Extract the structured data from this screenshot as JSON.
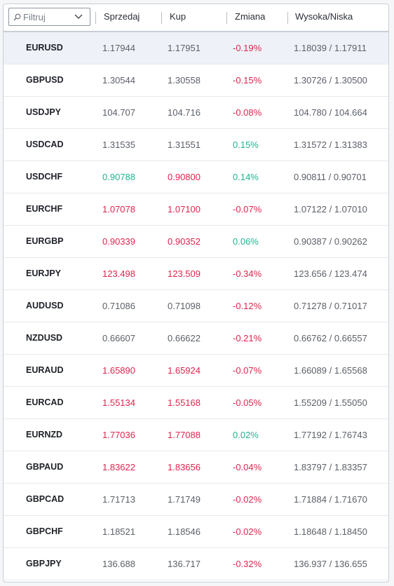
{
  "filter": {
    "placeholder": "Filtruj"
  },
  "columns": {
    "sell": "Sprzedaj",
    "buy": "Kup",
    "change": "Zmiana",
    "highlow": "Wysoka/Niska"
  },
  "colors": {
    "red": "#e0234e",
    "green": "#1fb491",
    "neutral": "#5b6068"
  },
  "rows": [
    {
      "symbol": "EURUSD",
      "sell": "1.17944",
      "buy": "1.17951",
      "change": "-0.19%",
      "highlow": "1.18039 / 1.17911",
      "price_tone": "neutral",
      "change_tone": "red",
      "selected": true
    },
    {
      "symbol": "GBPUSD",
      "sell": "1.30544",
      "buy": "1.30558",
      "change": "-0.15%",
      "highlow": "1.30726 / 1.30500",
      "price_tone": "neutral",
      "change_tone": "red"
    },
    {
      "symbol": "USDJPY",
      "sell": "104.707",
      "buy": "104.716",
      "change": "-0.08%",
      "highlow": "104.780 / 104.664",
      "price_tone": "neutral",
      "change_tone": "red"
    },
    {
      "symbol": "USDCAD",
      "sell": "1.31535",
      "buy": "1.31551",
      "change": "0.15%",
      "highlow": "1.31572 / 1.31383",
      "price_tone": "neutral",
      "change_tone": "green"
    },
    {
      "symbol": "USDCHF",
      "sell": "0.90788",
      "buy": "0.90800",
      "change": "0.14%",
      "highlow": "0.90811 / 0.90701",
      "sell_tone": "green",
      "buy_tone": "red",
      "change_tone": "green"
    },
    {
      "symbol": "EURCHF",
      "sell": "1.07078",
      "buy": "1.07100",
      "change": "-0.07%",
      "highlow": "1.07122 / 1.07010",
      "price_tone": "red",
      "change_tone": "red"
    },
    {
      "symbol": "EURGBP",
      "sell": "0.90339",
      "buy": "0.90352",
      "change": "0.06%",
      "highlow": "0.90387 / 0.90262",
      "price_tone": "red",
      "change_tone": "green"
    },
    {
      "symbol": "EURJPY",
      "sell": "123.498",
      "buy": "123.509",
      "change": "-0.34%",
      "highlow": "123.656 / 123.474",
      "price_tone": "red",
      "change_tone": "red"
    },
    {
      "symbol": "AUDUSD",
      "sell": "0.71086",
      "buy": "0.71098",
      "change": "-0.12%",
      "highlow": "0.71278 / 0.71017",
      "price_tone": "neutral",
      "change_tone": "red"
    },
    {
      "symbol": "NZDUSD",
      "sell": "0.66607",
      "buy": "0.66622",
      "change": "-0.21%",
      "highlow": "0.66762 / 0.66557",
      "price_tone": "neutral",
      "change_tone": "red"
    },
    {
      "symbol": "EURAUD",
      "sell": "1.65890",
      "buy": "1.65924",
      "change": "-0.07%",
      "highlow": "1.66089 / 1.65568",
      "price_tone": "red",
      "change_tone": "red"
    },
    {
      "symbol": "EURCAD",
      "sell": "1.55134",
      "buy": "1.55168",
      "change": "-0.05%",
      "highlow": "1.55209 / 1.55050",
      "price_tone": "red",
      "change_tone": "red"
    },
    {
      "symbol": "EURNZD",
      "sell": "1.77036",
      "buy": "1.77088",
      "change": "0.02%",
      "highlow": "1.77192 / 1.76743",
      "price_tone": "red",
      "change_tone": "green"
    },
    {
      "symbol": "GBPAUD",
      "sell": "1.83622",
      "buy": "1.83656",
      "change": "-0.04%",
      "highlow": "1.83797 / 1.83357",
      "price_tone": "red",
      "change_tone": "red"
    },
    {
      "symbol": "GBPCAD",
      "sell": "1.71713",
      "buy": "1.71749",
      "change": "-0.02%",
      "highlow": "1.71884 / 1.71670",
      "price_tone": "neutral",
      "change_tone": "red"
    },
    {
      "symbol": "GBPCHF",
      "sell": "1.18521",
      "buy": "1.18546",
      "change": "-0.02%",
      "highlow": "1.18648 / 1.18450",
      "price_tone": "neutral",
      "change_tone": "red"
    },
    {
      "symbol": "GBPJPY",
      "sell": "136.688",
      "buy": "136.717",
      "change": "-0.32%",
      "highlow": "136.937 / 136.655",
      "price_tone": "neutral",
      "change_tone": "red"
    }
  ]
}
